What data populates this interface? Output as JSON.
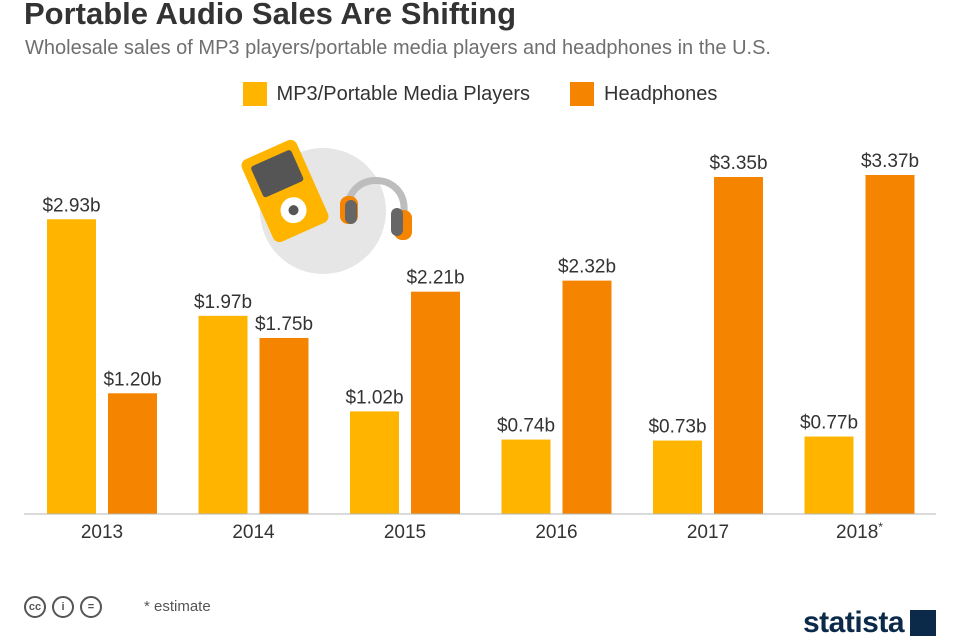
{
  "header": {
    "title": "Portable Audio Sales Are Shifting",
    "subtitle": "Wholesale sales of MP3 players/portable media players and headphones in the U.S."
  },
  "legend": [
    {
      "label": "MP3/Portable Media Players",
      "color": "#FFB400"
    },
    {
      "label": "Headphones",
      "color": "#F58500"
    }
  ],
  "chart_data": {
    "type": "bar",
    "categories": [
      "2013",
      "2014",
      "2015",
      "2016",
      "2017",
      "2018"
    ],
    "category_marks": [
      "",
      "",
      "",
      "",
      "",
      "*"
    ],
    "series": [
      {
        "name": "MP3/Portable Media Players",
        "color": "#FFB400",
        "values": [
          2.93,
          1.97,
          1.02,
          0.74,
          0.73,
          0.77
        ],
        "labels": [
          "$2.93b",
          "$1.97b",
          "$1.02b",
          "$0.74b",
          "$0.73b",
          "$0.77b"
        ]
      },
      {
        "name": "Headphones",
        "color": "#F58500",
        "values": [
          1.2,
          1.75,
          2.21,
          2.32,
          3.35,
          3.37
        ],
        "labels": [
          "$1.20b",
          "$1.75b",
          "$2.21b",
          "$2.32b",
          "$3.35b",
          "$3.37b"
        ]
      }
    ],
    "ylim": [
      0,
      3.37
    ],
    "grid": false,
    "legend_position": "top-center"
  },
  "illustration": {
    "icons": [
      "mp3-player-icon",
      "headphones-icon"
    ]
  },
  "footer": {
    "license_icons": [
      "cc-icon",
      "by-icon",
      "nd-icon"
    ],
    "note": "* estimate",
    "brand": "statista"
  }
}
